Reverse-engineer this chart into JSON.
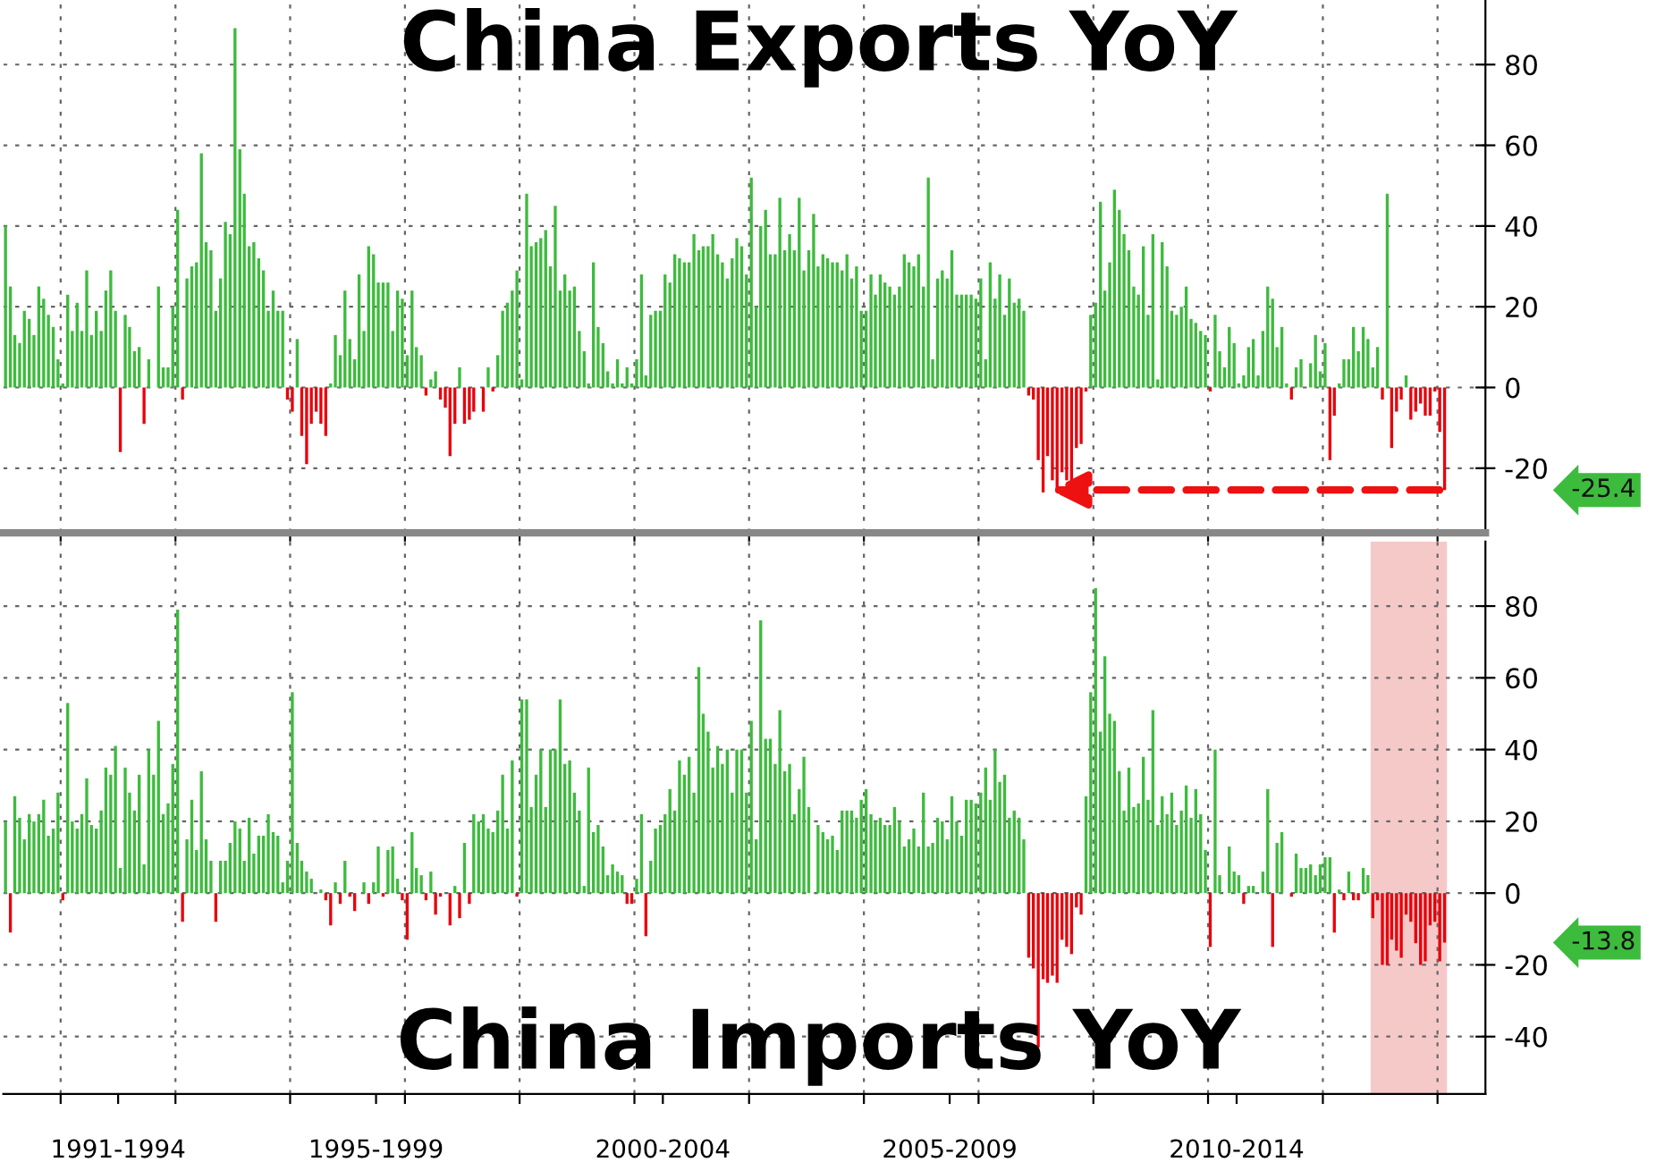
{
  "chart_data": [
    {
      "type": "bar",
      "title": "China Exports YoY",
      "tick_labels": "y",
      "grid": true,
      "x": [
        "1991-01",
        "1991-02",
        "1991-03",
        "1991-04",
        "1991-05",
        "1991-06",
        "1991-07",
        "1991-08",
        "1991-09",
        "1991-10",
        "1991-11",
        "1991-12",
        "1992-01",
        "1992-02",
        "1992-03",
        "1992-04",
        "1992-05",
        "1992-06",
        "1992-07",
        "1992-08",
        "1992-09",
        "1992-10",
        "1992-11",
        "1992-12",
        "1993-01",
        "1993-02",
        "1993-03",
        "1993-04",
        "1993-05",
        "1993-06",
        "1993-07",
        "1993-08",
        "1993-09",
        "1993-10",
        "1993-11",
        "1993-12",
        "1994-01",
        "1994-02",
        "1994-03",
        "1994-04",
        "1994-05",
        "1994-06",
        "1994-07",
        "1994-08",
        "1994-09",
        "1994-10",
        "1994-11",
        "1994-12",
        "1995-01",
        "1995-02",
        "1995-03",
        "1995-04",
        "1995-05",
        "1995-06",
        "1995-07",
        "1995-08",
        "1995-09",
        "1995-10",
        "1995-11",
        "1995-12",
        "1996-01",
        "1996-02",
        "1996-03",
        "1996-04",
        "1996-05",
        "1996-06",
        "1996-07",
        "1996-08",
        "1996-09",
        "1996-10",
        "1996-11",
        "1996-12",
        "1997-01",
        "1997-02",
        "1997-03",
        "1997-04",
        "1997-05",
        "1997-06",
        "1997-07",
        "1997-08",
        "1997-09",
        "1997-10",
        "1997-11",
        "1997-12",
        "1998-01",
        "1998-02",
        "1998-03",
        "1998-04",
        "1998-05",
        "1998-06",
        "1998-07",
        "1998-08",
        "1998-09",
        "1998-10",
        "1998-11",
        "1998-12",
        "1999-01",
        "1999-02",
        "1999-03",
        "1999-04",
        "1999-05",
        "1999-06",
        "1999-07",
        "1999-08",
        "1999-09",
        "1999-10",
        "1999-11",
        "1999-12",
        "2000-01",
        "2000-02",
        "2000-03",
        "2000-04",
        "2000-05",
        "2000-06",
        "2000-07",
        "2000-08",
        "2000-09",
        "2000-10",
        "2000-11",
        "2000-12",
        "2001-01",
        "2001-02",
        "2001-03",
        "2001-04",
        "2001-05",
        "2001-06",
        "2001-07",
        "2001-08",
        "2001-09",
        "2001-10",
        "2001-11",
        "2001-12",
        "2002-01",
        "2002-02",
        "2002-03",
        "2002-04",
        "2002-05",
        "2002-06",
        "2002-07",
        "2002-08",
        "2002-09",
        "2002-10",
        "2002-11",
        "2002-12",
        "2003-01",
        "2003-02",
        "2003-03",
        "2003-04",
        "2003-05",
        "2003-06",
        "2003-07",
        "2003-08",
        "2003-09",
        "2003-10",
        "2003-11",
        "2003-12",
        "2004-01",
        "2004-02",
        "2004-03",
        "2004-04",
        "2004-05",
        "2004-06",
        "2004-07",
        "2004-08",
        "2004-09",
        "2004-10",
        "2004-11",
        "2004-12",
        "2005-01",
        "2005-02",
        "2005-03",
        "2005-04",
        "2005-05",
        "2005-06",
        "2005-07",
        "2005-08",
        "2005-09",
        "2005-10",
        "2005-11",
        "2005-12",
        "2006-01",
        "2006-02",
        "2006-03",
        "2006-04",
        "2006-05",
        "2006-06",
        "2006-07",
        "2006-08",
        "2006-09",
        "2006-10",
        "2006-11",
        "2006-12",
        "2007-01",
        "2007-02",
        "2007-03",
        "2007-04",
        "2007-05",
        "2007-06",
        "2007-07",
        "2007-08",
        "2007-09",
        "2007-10",
        "2007-11",
        "2007-12",
        "2008-01",
        "2008-02",
        "2008-03",
        "2008-04",
        "2008-05",
        "2008-06",
        "2008-07",
        "2008-08",
        "2008-09",
        "2008-10",
        "2008-11",
        "2008-12",
        "2009-01",
        "2009-02",
        "2009-03",
        "2009-04",
        "2009-05",
        "2009-06",
        "2009-07",
        "2009-08",
        "2009-09",
        "2009-10",
        "2009-11",
        "2009-12",
        "2010-01",
        "2010-02",
        "2010-03",
        "2010-04",
        "2010-05",
        "2010-06",
        "2010-07",
        "2010-08",
        "2010-09",
        "2010-10",
        "2010-11",
        "2010-12",
        "2011-01",
        "2011-02",
        "2011-03",
        "2011-04",
        "2011-05",
        "2011-06",
        "2011-07",
        "2011-08",
        "2011-09",
        "2011-10",
        "2011-11",
        "2011-12",
        "2012-01",
        "2012-02",
        "2012-03",
        "2012-04",
        "2012-05",
        "2012-06",
        "2012-07",
        "2012-08",
        "2012-09",
        "2012-10",
        "2012-11",
        "2012-12",
        "2013-01",
        "2013-02",
        "2013-03",
        "2013-04",
        "2013-05",
        "2013-06",
        "2013-07",
        "2013-08",
        "2013-09",
        "2013-10",
        "2013-11",
        "2013-12",
        "2014-01",
        "2014-02",
        "2014-03",
        "2014-04",
        "2014-05",
        "2014-06",
        "2014-07",
        "2014-08",
        "2014-09",
        "2014-10",
        "2014-11",
        "2014-12",
        "2015-01",
        "2015-02",
        "2015-03",
        "2015-04",
        "2015-05",
        "2015-06",
        "2015-07",
        "2015-08",
        "2015-09",
        "2015-10",
        "2015-11",
        "2015-12",
        "2016-01",
        "2016-02"
      ],
      "series": [
        {
          "color": "#3dbb3d",
          "values": [
            40,
            25,
            13,
            11,
            19,
            17,
            13,
            25,
            22,
            18,
            15,
            7,
            1,
            23,
            14,
            21,
            14,
            29,
            13,
            19,
            14,
            24,
            29,
            19,
            null,
            18,
            15,
            9,
            10,
            null,
            7,
            0,
            25,
            5,
            5,
            20,
            44,
            null,
            27,
            30,
            31,
            58,
            36,
            34,
            19,
            27,
            41,
            38,
            89,
            59,
            48,
            35,
            36,
            32,
            29,
            19,
            24,
            19,
            19,
            null,
            null,
            12,
            null,
            null,
            null,
            null,
            null,
            null,
            1,
            13,
            8,
            24,
            12,
            7,
            28,
            14,
            35,
            33,
            26,
            26,
            26,
            14,
            24,
            22,
            8,
            24,
            10,
            8,
            null,
            2,
            4,
            null,
            null,
            null,
            null,
            5,
            null,
            null,
            null,
            0,
            null,
            5,
            null,
            8,
            19,
            21,
            24,
            29,
            2,
            48,
            35,
            36,
            37,
            39,
            30,
            45,
            24,
            28,
            24,
            25,
            14,
            9,
            1,
            31,
            15,
            11,
            4,
            1,
            7,
            1,
            5,
            1,
            7,
            28,
            3,
            18,
            19,
            19,
            28,
            26,
            33,
            32,
            31,
            31,
            38,
            34,
            35,
            35,
            38,
            33,
            31,
            27,
            32,
            37,
            35,
            28,
            52,
            20,
            40,
            44,
            33,
            33,
            47,
            34,
            38,
            34,
            47,
            29,
            34,
            43,
            30,
            33,
            32,
            31,
            31,
            29,
            33,
            27,
            30,
            19,
            19,
            28,
            23,
            28,
            26,
            25,
            23,
            25,
            33,
            31,
            30,
            33,
            25,
            52,
            7,
            27,
            29,
            27,
            34,
            23,
            23,
            23,
            23,
            22,
            27,
            7,
            31,
            22,
            28,
            18,
            27,
            21,
            22,
            19,
            null,
            null,
            null,
            null,
            null,
            null,
            null,
            null,
            null,
            null,
            null,
            null,
            null,
            18,
            21,
            46,
            24,
            31,
            49,
            44,
            38,
            34,
            25,
            23,
            35,
            18,
            38,
            2,
            36,
            30,
            19,
            18,
            20,
            25,
            17,
            16,
            14,
            13,
            null,
            18,
            9,
            5,
            15,
            11,
            1,
            3,
            10,
            12,
            3,
            14,
            25,
            22,
            10,
            15,
            1,
            null,
            5,
            7,
            0,
            6,
            13,
            4,
            11,
            null,
            null,
            1,
            7,
            7,
            15,
            9,
            15,
            12,
            5,
            10,
            null,
            48,
            null,
            null,
            null,
            3,
            null,
            null,
            null,
            null,
            null,
            null,
            null,
            null
          ]
        },
        {
          "color": "#e8000b",
          "values": [
            null,
            null,
            null,
            null,
            null,
            null,
            null,
            null,
            null,
            null,
            null,
            null,
            null,
            null,
            null,
            null,
            null,
            null,
            null,
            null,
            null,
            null,
            null,
            null,
            -16,
            null,
            null,
            null,
            null,
            -9,
            null,
            null,
            null,
            null,
            null,
            null,
            null,
            -3,
            null,
            null,
            null,
            null,
            null,
            null,
            null,
            null,
            null,
            null,
            null,
            null,
            null,
            null,
            null,
            null,
            null,
            null,
            null,
            null,
            null,
            -3,
            -6,
            null,
            -12,
            -19,
            -9,
            -6,
            -9,
            -12,
            null,
            null,
            null,
            null,
            null,
            null,
            null,
            null,
            null,
            null,
            null,
            null,
            null,
            null,
            null,
            null,
            null,
            null,
            null,
            null,
            -2,
            null,
            null,
            -3,
            -5,
            -17,
            -9,
            null,
            -9,
            -8,
            -6,
            null,
            -6,
            null,
            -1,
            null,
            null,
            null,
            null,
            null,
            null,
            null,
            null,
            null,
            null,
            null,
            null,
            null,
            null,
            null,
            null,
            null,
            null,
            null,
            null,
            null,
            null,
            null,
            null,
            null,
            null,
            null,
            null,
            null,
            null,
            null,
            null,
            null,
            null,
            null,
            null,
            null,
            null,
            null,
            null,
            null,
            null,
            null,
            null,
            null,
            null,
            null,
            null,
            null,
            null,
            null,
            null,
            null,
            null,
            null,
            null,
            null,
            null,
            null,
            null,
            null,
            null,
            null,
            null,
            null,
            null,
            null,
            null,
            null,
            null,
            null,
            null,
            null,
            null,
            null,
            null,
            null,
            null,
            null,
            null,
            null,
            null,
            null,
            null,
            null,
            null,
            null,
            null,
            null,
            null,
            null,
            null,
            null,
            null,
            null,
            null,
            null,
            null,
            null,
            null,
            null,
            null,
            null,
            null,
            null,
            null,
            null,
            null,
            null,
            null,
            null,
            -2,
            -3,
            -18,
            -26,
            -17,
            -23,
            -26,
            -21,
            -23,
            -23,
            -15,
            -14,
            -1,
            null,
            null,
            null,
            null,
            null,
            null,
            null,
            null,
            null,
            null,
            null,
            null,
            null,
            null,
            null,
            null,
            null,
            null,
            null,
            null,
            null,
            null,
            null,
            null,
            null,
            -1,
            null,
            null,
            null,
            null,
            null,
            null,
            null,
            null,
            null,
            null,
            null,
            null,
            null,
            null,
            null,
            null,
            -3,
            null,
            null,
            null,
            null,
            null,
            null,
            null,
            -18,
            -7,
            null,
            null,
            null,
            null,
            null,
            null,
            null,
            null,
            null,
            -3,
            null,
            -15,
            -6,
            -3,
            null,
            -8,
            -6,
            -4,
            -7,
            -7,
            -1,
            -11,
            -25.4
          ]
        }
      ],
      "xlim": [
        "1991-01-01",
        "2016-11-01"
      ],
      "xticks": [
        {
          "value": "1992-01-01",
          "label": null
        },
        {
          "value": "1994-01-01",
          "label": null
        },
        {
          "value": "1996-01-01",
          "label": null
        },
        {
          "value": "1998-01-01",
          "label": null
        },
        {
          "value": "2000-01-01",
          "label": null
        },
        {
          "value": "2002-01-01",
          "label": null
        },
        {
          "value": "2004-01-01",
          "label": null
        },
        {
          "value": "2006-01-01",
          "label": null
        },
        {
          "value": "2008-01-01",
          "label": null
        },
        {
          "value": "2010-01-01",
          "label": null
        },
        {
          "value": "2012-01-01",
          "label": null
        },
        {
          "value": "2014-01-01",
          "label": null
        },
        {
          "value": "2016-01-01",
          "label": null
        }
      ],
      "ylim": [
        -36,
        96
      ],
      "yticks": [
        -20,
        0,
        20,
        40,
        60,
        80
      ],
      "annotations": [
        "-25.4"
      ]
    },
    {
      "type": "bar",
      "title": "China Imports YoY",
      "grid": true,
      "x": [
        "1991-01",
        "1991-02",
        "1991-03",
        "1991-04",
        "1991-05",
        "1991-06",
        "1991-07",
        "1991-08",
        "1991-09",
        "1991-10",
        "1991-11",
        "1991-12",
        "1992-01",
        "1992-02",
        "1992-03",
        "1992-04",
        "1992-05",
        "1992-06",
        "1992-07",
        "1992-08",
        "1992-09",
        "1992-10",
        "1992-11",
        "1992-12",
        "1993-01",
        "1993-02",
        "1993-03",
        "1993-04",
        "1993-05",
        "1993-06",
        "1993-07",
        "1993-08",
        "1993-09",
        "1993-10",
        "1993-11",
        "1993-12",
        "1994-01",
        "1994-02",
        "1994-03",
        "1994-04",
        "1994-05",
        "1994-06",
        "1994-07",
        "1994-08",
        "1994-09",
        "1994-10",
        "1994-11",
        "1994-12",
        "1995-01",
        "1995-02",
        "1995-03",
        "1995-04",
        "1995-05",
        "1995-06",
        "1995-07",
        "1995-08",
        "1995-09",
        "1995-10",
        "1995-11",
        "1995-12",
        "1996-01",
        "1996-02",
        "1996-03",
        "1996-04",
        "1996-05",
        "1996-06",
        "1996-07",
        "1996-08",
        "1996-09",
        "1996-10",
        "1996-11",
        "1996-12",
        "1997-01",
        "1997-02",
        "1997-03",
        "1997-04",
        "1997-05",
        "1997-06",
        "1997-07",
        "1997-08",
        "1997-09",
        "1997-10",
        "1997-11",
        "1997-12",
        "1998-01",
        "1998-02",
        "1998-03",
        "1998-04",
        "1998-05",
        "1998-06",
        "1998-07",
        "1998-08",
        "1998-09",
        "1998-10",
        "1998-11",
        "1998-12",
        "1999-01",
        "1999-02",
        "1999-03",
        "1999-04",
        "1999-05",
        "1999-06",
        "1999-07",
        "1999-08",
        "1999-09",
        "1999-10",
        "1999-11",
        "1999-12",
        "2000-01",
        "2000-02",
        "2000-03",
        "2000-04",
        "2000-05",
        "2000-06",
        "2000-07",
        "2000-08",
        "2000-09",
        "2000-10",
        "2000-11",
        "2000-12",
        "2001-01",
        "2001-02",
        "2001-03",
        "2001-04",
        "2001-05",
        "2001-06",
        "2001-07",
        "2001-08",
        "2001-09",
        "2001-10",
        "2001-11",
        "2001-12",
        "2002-01",
        "2002-02",
        "2002-03",
        "2002-04",
        "2002-05",
        "2002-06",
        "2002-07",
        "2002-08",
        "2002-09",
        "2002-10",
        "2002-11",
        "2002-12",
        "2003-01",
        "2003-02",
        "2003-03",
        "2003-04",
        "2003-05",
        "2003-06",
        "2003-07",
        "2003-08",
        "2003-09",
        "2003-10",
        "2003-11",
        "2003-12",
        "2004-01",
        "2004-02",
        "2004-03",
        "2004-04",
        "2004-05",
        "2004-06",
        "2004-07",
        "2004-08",
        "2004-09",
        "2004-10",
        "2004-11",
        "2004-12",
        "2005-01",
        "2005-02",
        "2005-03",
        "2005-04",
        "2005-05",
        "2005-06",
        "2005-07",
        "2005-08",
        "2005-09",
        "2005-10",
        "2005-11",
        "2005-12",
        "2006-01",
        "2006-02",
        "2006-03",
        "2006-04",
        "2006-05",
        "2006-06",
        "2006-07",
        "2006-08",
        "2006-09",
        "2006-10",
        "2006-11",
        "2006-12",
        "2007-01",
        "2007-02",
        "2007-03",
        "2007-04",
        "2007-05",
        "2007-06",
        "2007-07",
        "2007-08",
        "2007-09",
        "2007-10",
        "2007-11",
        "2007-12",
        "2008-01",
        "2008-02",
        "2008-03",
        "2008-04",
        "2008-05",
        "2008-06",
        "2008-07",
        "2008-08",
        "2008-09",
        "2008-10",
        "2008-11",
        "2008-12",
        "2009-01",
        "2009-02",
        "2009-03",
        "2009-04",
        "2009-05",
        "2009-06",
        "2009-07",
        "2009-08",
        "2009-09",
        "2009-10",
        "2009-11",
        "2009-12",
        "2010-01",
        "2010-02",
        "2010-03",
        "2010-04",
        "2010-05",
        "2010-06",
        "2010-07",
        "2010-08",
        "2010-09",
        "2010-10",
        "2010-11",
        "2010-12",
        "2011-01",
        "2011-02",
        "2011-03",
        "2011-04",
        "2011-05",
        "2011-06",
        "2011-07",
        "2011-08",
        "2011-09",
        "2011-10",
        "2011-11",
        "2011-12",
        "2012-01",
        "2012-02",
        "2012-03",
        "2012-04",
        "2012-05",
        "2012-06",
        "2012-07",
        "2012-08",
        "2012-09",
        "2012-10",
        "2012-11",
        "2012-12",
        "2013-01",
        "2013-02",
        "2013-03",
        "2013-04",
        "2013-05",
        "2013-06",
        "2013-07",
        "2013-08",
        "2013-09",
        "2013-10",
        "2013-11",
        "2013-12",
        "2014-01",
        "2014-02",
        "2014-03",
        "2014-04",
        "2014-05",
        "2014-06",
        "2014-07",
        "2014-08",
        "2014-09",
        "2014-10",
        "2014-11",
        "2014-12",
        "2015-01",
        "2015-02",
        "2015-03",
        "2015-04",
        "2015-05",
        "2015-06",
        "2015-07",
        "2015-08",
        "2015-09",
        "2015-10",
        "2015-11",
        "2015-12",
        "2016-01",
        "2016-02"
      ],
      "series": [
        {
          "color": "#3dbb3d",
          "values": [
            20,
            null,
            27,
            21,
            15,
            22,
            20,
            22,
            26,
            16,
            18,
            28,
            null,
            53,
            20,
            18,
            22,
            32,
            19,
            18,
            23,
            35,
            33,
            41,
            7,
            35,
            28,
            23,
            33,
            8,
            40,
            33,
            48,
            22,
            25,
            36,
            79,
            null,
            15,
            26,
            12,
            34,
            15,
            9,
            null,
            9,
            9,
            14,
            20,
            18,
            9,
            21,
            11,
            16,
            16,
            22,
            17,
            16,
            3,
            9,
            56,
            14,
            9,
            6,
            4,
            0,
            1,
            null,
            null,
            3,
            null,
            9,
            null,
            null,
            0,
            3,
            null,
            3,
            13,
            null,
            12,
            13,
            4,
            null,
            null,
            17,
            7,
            5,
            null,
            6,
            null,
            null,
            0,
            null,
            2,
            null,
            14,
            null,
            22,
            20,
            22,
            18,
            17,
            23,
            33,
            18,
            37,
            null,
            54,
            54,
            24,
            33,
            40,
            24,
            40,
            40,
            54,
            36,
            37,
            28,
            23,
            2,
            35,
            17,
            19,
            13,
            5,
            8,
            6,
            5,
            null,
            null,
            4,
            22,
            null,
            9,
            18,
            19,
            22,
            29,
            23,
            37,
            33,
            38,
            28,
            63,
            50,
            45,
            35,
            41,
            36,
            40,
            28,
            40,
            40,
            28,
            48,
            15,
            76,
            43,
            43,
            36,
            51,
            34,
            36,
            22,
            29,
            38,
            24,
            null,
            19,
            17,
            15,
            16,
            12,
            23,
            23,
            23,
            21,
            26,
            29,
            22,
            20,
            21,
            19,
            19,
            24,
            20,
            13,
            15,
            18,
            13,
            28,
            13,
            14,
            21,
            20,
            15,
            27,
            20,
            16,
            26,
            26,
            25,
            28,
            35,
            26,
            40,
            31,
            33,
            21,
            23,
            21,
            15,
            null,
            null,
            null,
            null,
            null,
            null,
            null,
            null,
            null,
            null,
            null,
            null,
            27,
            56,
            85,
            45,
            66,
            50,
            48,
            34,
            23,
            35,
            24,
            25,
            38,
            26,
            51,
            19,
            27,
            22,
            28,
            19,
            23,
            30,
            21,
            29,
            22,
            12,
            null,
            40,
            5,
            0,
            13,
            6,
            5,
            null,
            2,
            2,
            0,
            6,
            29,
            null,
            14,
            17,
            0,
            null,
            11,
            7,
            7,
            8,
            5,
            8,
            10,
            10,
            null,
            1,
            null,
            6,
            null,
            null,
            7,
            5,
            null,
            null,
            null,
            null,
            null,
            null,
            null,
            null,
            null,
            null,
            null,
            null,
            null,
            null,
            null,
            null
          ]
        },
        {
          "color": "#e8000b",
          "values": [
            null,
            -11,
            null,
            null,
            null,
            null,
            null,
            null,
            null,
            null,
            null,
            null,
            -2,
            null,
            null,
            null,
            null,
            null,
            null,
            null,
            null,
            null,
            null,
            null,
            null,
            null,
            null,
            null,
            null,
            null,
            null,
            null,
            null,
            null,
            null,
            null,
            null,
            -8,
            null,
            null,
            null,
            null,
            null,
            null,
            -8,
            null,
            null,
            null,
            null,
            null,
            null,
            null,
            null,
            null,
            null,
            null,
            null,
            null,
            null,
            null,
            null,
            null,
            null,
            null,
            null,
            null,
            null,
            -2,
            -9,
            null,
            -3,
            null,
            -1,
            -5,
            null,
            null,
            -3,
            null,
            null,
            -1,
            null,
            null,
            null,
            -2,
            -13,
            null,
            null,
            null,
            -2,
            null,
            -6,
            -1,
            null,
            -9,
            null,
            -7,
            null,
            -3,
            null,
            null,
            null,
            null,
            null,
            null,
            null,
            null,
            null,
            -1,
            null,
            null,
            null,
            null,
            null,
            null,
            null,
            null,
            null,
            null,
            null,
            null,
            null,
            null,
            null,
            null,
            null,
            null,
            null,
            null,
            null,
            null,
            -3,
            -3,
            null,
            null,
            -12,
            null,
            null,
            null,
            null,
            null,
            null,
            null,
            null,
            null,
            null,
            null,
            null,
            null,
            null,
            null,
            null,
            null,
            null,
            null,
            null,
            null,
            null,
            null,
            null,
            null,
            null,
            null,
            null,
            null,
            null,
            null,
            null,
            null,
            null,
            null,
            null,
            null,
            null,
            null,
            null,
            null,
            null,
            null,
            null,
            null,
            null,
            null,
            null,
            null,
            null,
            null,
            null,
            null,
            null,
            null,
            null,
            null,
            null,
            null,
            null,
            null,
            null,
            null,
            null,
            null,
            null,
            null,
            null,
            null,
            null,
            null,
            null,
            null,
            null,
            null,
            null,
            null,
            null,
            null,
            -18,
            -21,
            -43,
            -24,
            -25,
            -23,
            -25,
            -13,
            -15,
            -17,
            -4,
            -6,
            null,
            null,
            null,
            null,
            null,
            null,
            null,
            null,
            null,
            null,
            null,
            null,
            null,
            null,
            null,
            null,
            null,
            null,
            null,
            null,
            null,
            null,
            null,
            null,
            null,
            null,
            -15,
            null,
            null,
            null,
            null,
            null,
            null,
            -3,
            null,
            null,
            null,
            null,
            null,
            -15,
            null,
            null,
            null,
            -1,
            null,
            null,
            null,
            null,
            null,
            null,
            null,
            null,
            -11,
            null,
            -2,
            null,
            -2,
            -2,
            null,
            null,
            -7,
            -2,
            -20,
            -20,
            -13,
            -16,
            -18,
            -6,
            -8,
            -14,
            -20,
            -19,
            -9,
            -8,
            -19,
            -13.8
          ]
        }
      ],
      "xlim": [
        "1991-01-01",
        "2016-11-01"
      ],
      "xticks": [
        {
          "value": "1992-01-01",
          "label": null
        },
        {
          "value": "1993-01-01",
          "label": "1991-1994"
        },
        {
          "value": "1994-01-01",
          "label": null
        },
        {
          "value": "1996-01-01",
          "label": null
        },
        {
          "value": "1997-07-01",
          "label": "1995-1999"
        },
        {
          "value": "1998-01-01",
          "label": null
        },
        {
          "value": "2000-01-01",
          "label": null
        },
        {
          "value": "2002-01-01",
          "label": null
        },
        {
          "value": "2002-07-01",
          "label": "2000-2004"
        },
        {
          "value": "2004-01-01",
          "label": null
        },
        {
          "value": "2006-01-01",
          "label": null
        },
        {
          "value": "2007-07-01",
          "label": "2005-2009"
        },
        {
          "value": "2008-01-01",
          "label": null
        },
        {
          "value": "2010-01-01",
          "label": null
        },
        {
          "value": "2012-01-01",
          "label": null
        },
        {
          "value": "2012-07-01",
          "label": "2010-2014"
        },
        {
          "value": "2014-01-01",
          "label": null
        },
        {
          "value": "2016-01-01",
          "label": null
        }
      ],
      "ylim": [
        -56,
        98
      ],
      "yticks": [
        -40,
        -20,
        0,
        20,
        40,
        60,
        80
      ],
      "bands": [
        {
          "axis": "x",
          "from": "2014-11-01",
          "to": "2016-03-01",
          "color": "#f6c9c9"
        }
      ],
      "annotations": [
        "-13.8"
      ]
    }
  ]
}
